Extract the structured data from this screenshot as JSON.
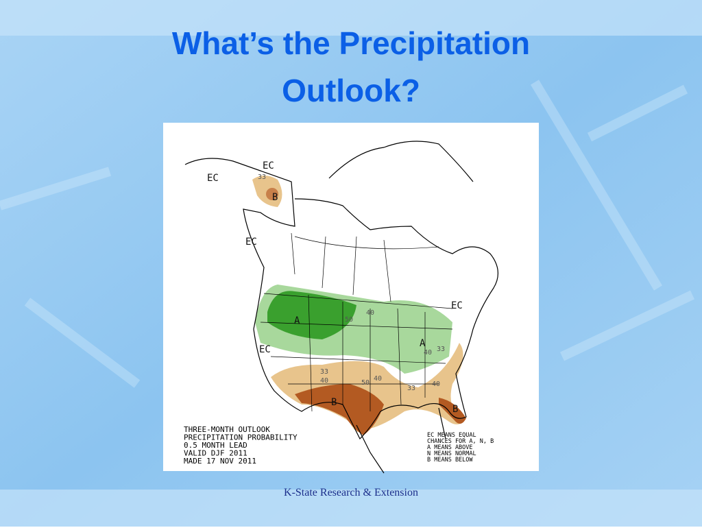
{
  "slide": {
    "title": [
      "What’s the Precipitation",
      "Outlook?"
    ],
    "footer": "K-State Research & Extension"
  },
  "map": {
    "labels": [
      "EC",
      "33",
      "B",
      "EC",
      "EC",
      "A",
      "50",
      "40",
      "EC",
      "A",
      "40",
      "33",
      "EC",
      "33",
      "40",
      "50",
      "40",
      "B",
      "33",
      "40",
      "B"
    ],
    "caption": [
      "THREE-MONTH OUTLOOK",
      "PRECIPITATION PROBABILITY",
      "0.5 MONTH LEAD",
      "VALID DJF 2011",
      "MADE 17 NOV 2011"
    ],
    "key": [
      "EC MEANS EQUAL",
      "CHANCES FOR A, N, B",
      "A MEANS ABOVE",
      "N MEANS NORMAL",
      "B MEANS BELOW"
    ]
  }
}
